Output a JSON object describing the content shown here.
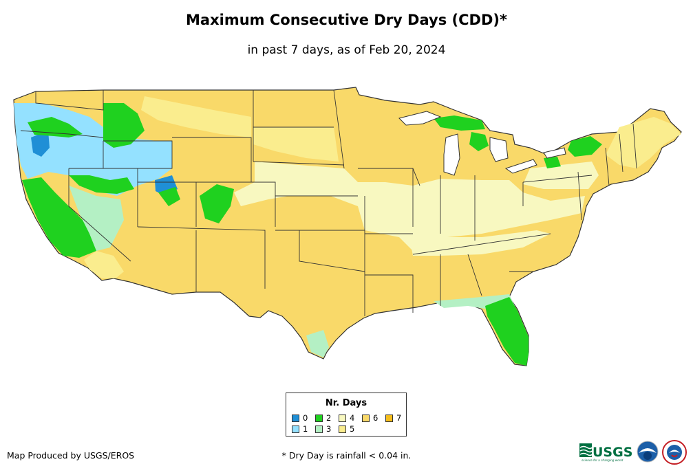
{
  "title": "Maximum Consecutive Dry Days (CDD)*",
  "subtitle": "in past 7 days, as of Feb 20, 2024",
  "legend": {
    "title": "Nr. Days",
    "items": [
      {
        "label": "0",
        "color": "#1f8fd6"
      },
      {
        "label": "1",
        "color": "#94e1ff"
      },
      {
        "label": "2",
        "color": "#1fd11f"
      },
      {
        "label": "3",
        "color": "#b4f0c4"
      },
      {
        "label": "4",
        "color": "#f8f8c0"
      },
      {
        "label": "5",
        "color": "#faed8e"
      },
      {
        "label": "6",
        "color": "#f9d969"
      },
      {
        "label": "7",
        "color": "#f5bd1a"
      }
    ]
  },
  "credit": "Map Produced by USGS/EROS",
  "footnote": "* Dry Day is rainfall < 0.04 in.",
  "logos": [
    "usgs-logo",
    "noaa-logo",
    "nws-logo"
  ],
  "icons": {
    "usgs_tagline": "science for a changing world"
  }
}
